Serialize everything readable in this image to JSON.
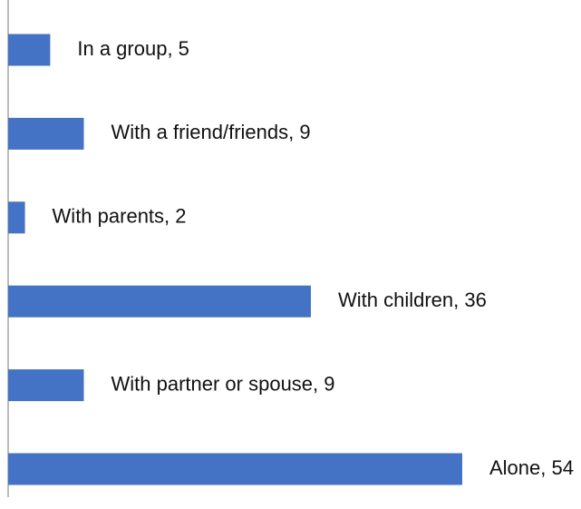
{
  "chart_data": {
    "type": "bar",
    "orientation": "horizontal",
    "categories": [
      "Alone",
      "With partner or spouse",
      "With children",
      "With parents",
      "With a friend/friends",
      "In a group"
    ],
    "values": [
      54,
      9,
      36,
      2,
      9,
      5
    ],
    "data_labels": [
      "Alone, 54",
      "With partner or spouse, 9",
      "With children, 36",
      "With parents, 2",
      "With a friend/friends, 9",
      "In a group, 5"
    ],
    "title": "",
    "xlabel": "",
    "ylabel": "",
    "xlim": [
      0,
      54
    ],
    "grid": false,
    "legend": "none",
    "bar_color": "#4472c4",
    "axis_color": "#a6a6a6",
    "label_color": "#111111"
  }
}
